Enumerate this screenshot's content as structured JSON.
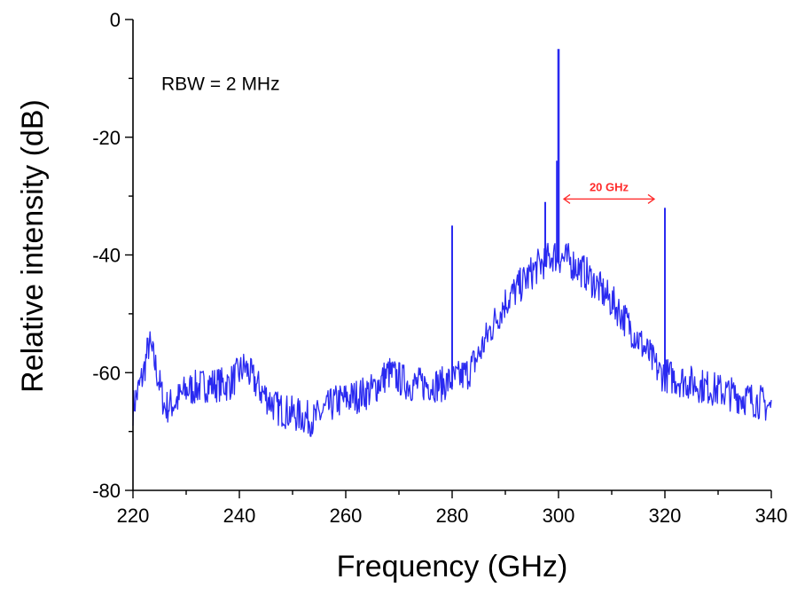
{
  "chart_data": {
    "type": "line",
    "xlabel": "Frequency (GHz)",
    "ylabel": "Relative intensity (dB)",
    "xlim": [
      220,
      340
    ],
    "ylim": [
      -80,
      0
    ],
    "x_ticks": [
      220,
      240,
      260,
      280,
      300,
      320,
      340
    ],
    "y_ticks": [
      0,
      -20,
      -40,
      -60,
      -80
    ],
    "y_tick_labels": [
      "0",
      "-20",
      "-40",
      "-60",
      "-80"
    ],
    "annotations": [
      {
        "text": "RBW = 2 MHz",
        "x": 225,
        "y": -12
      },
      {
        "text": "20 GHz",
        "type": "double-arrow",
        "x_start": 301,
        "x_end": 318,
        "y": -30.5,
        "color": "#ff2a2a"
      }
    ],
    "series_color": "#2a2af0",
    "baseline_profile": [
      [
        220,
        -66
      ],
      [
        222,
        -60
      ],
      [
        223,
        -55
      ],
      [
        224,
        -58
      ],
      [
        226,
        -66
      ],
      [
        228,
        -65
      ],
      [
        230,
        -63
      ],
      [
        234,
        -62
      ],
      [
        238,
        -62
      ],
      [
        241,
        -59
      ],
      [
        244,
        -63
      ],
      [
        247,
        -66
      ],
      [
        250,
        -67
      ],
      [
        254,
        -68
      ],
      [
        258,
        -65
      ],
      [
        262,
        -64
      ],
      [
        265,
        -63
      ],
      [
        268,
        -60
      ],
      [
        270,
        -61
      ],
      [
        272,
        -62
      ],
      [
        275,
        -62
      ],
      [
        278,
        -62
      ],
      [
        281,
        -61
      ],
      [
        283,
        -60
      ],
      [
        285,
        -57
      ],
      [
        287,
        -53
      ],
      [
        290,
        -48
      ],
      [
        293,
        -45
      ],
      [
        296,
        -42
      ],
      [
        299,
        -40
      ],
      [
        302,
        -41
      ],
      [
        305,
        -43
      ],
      [
        308,
        -46
      ],
      [
        311,
        -49
      ],
      [
        314,
        -53
      ],
      [
        317,
        -57
      ],
      [
        319,
        -60
      ],
      [
        322,
        -61
      ],
      [
        326,
        -62
      ],
      [
        330,
        -63
      ],
      [
        334,
        -64
      ],
      [
        338,
        -65
      ],
      [
        340,
        -66
      ]
    ],
    "noise_amplitude_db": 3,
    "peaks": [
      {
        "x": 280,
        "y": -35
      },
      {
        "x": 297.5,
        "y": -31
      },
      {
        "x": 299.7,
        "y": -24
      },
      {
        "x": 300,
        "y": -5
      },
      {
        "x": 320,
        "y": -32
      }
    ]
  }
}
